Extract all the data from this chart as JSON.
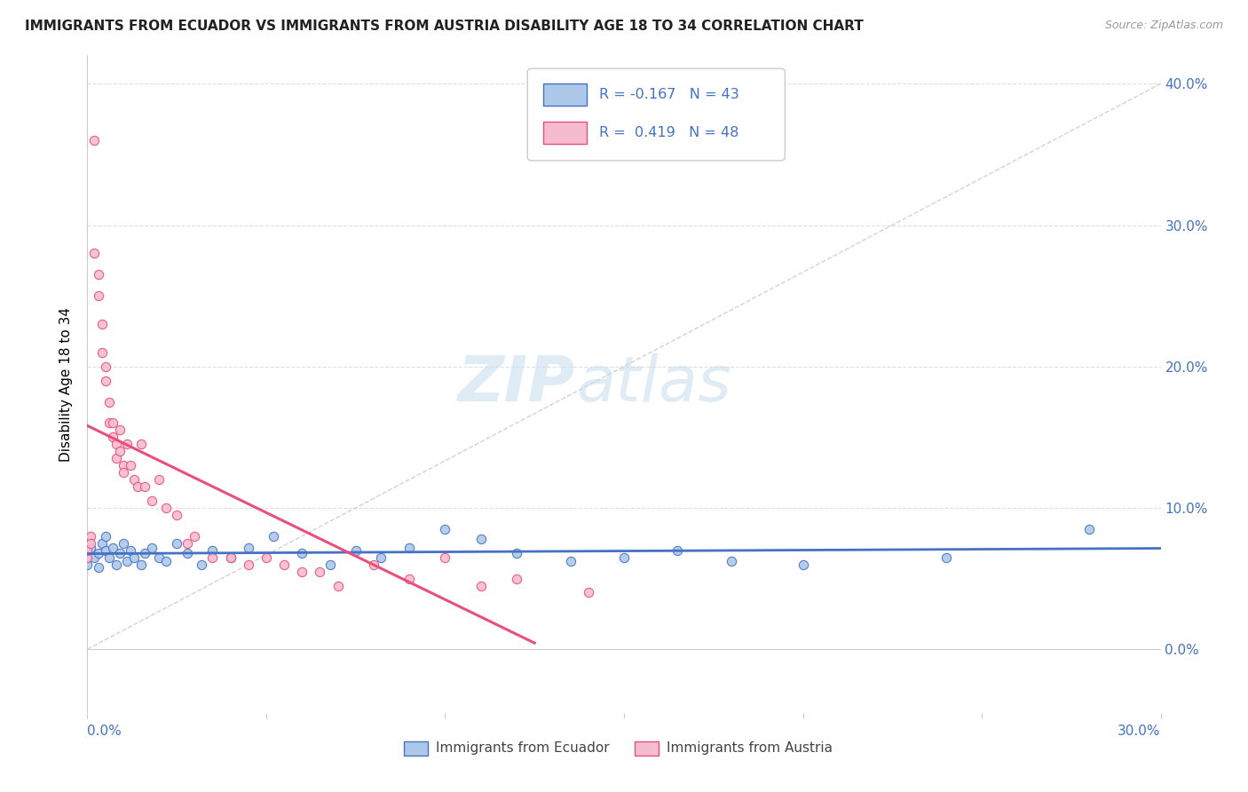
{
  "title": "IMMIGRANTS FROM ECUADOR VS IMMIGRANTS FROM AUSTRIA DISABILITY AGE 18 TO 34 CORRELATION CHART",
  "source": "Source: ZipAtlas.com",
  "ylabel": "Disability Age 18 to 34",
  "legend_ecuador": "Immigrants from Ecuador",
  "legend_austria": "Immigrants from Austria",
  "R_ecuador": -0.167,
  "N_ecuador": 43,
  "R_austria": 0.419,
  "N_austria": 48,
  "ecuador_color": "#adc8e8",
  "austria_color": "#f5bcd0",
  "ecuador_line_color": "#4472c4",
  "austria_line_color": "#e8507a",
  "xmin": 0.0,
  "xmax": 0.3,
  "ymin": -0.045,
  "ymax": 0.42,
  "yticks": [
    0.0,
    0.1,
    0.2,
    0.3,
    0.4
  ],
  "ecuador_x": [
    0.0,
    0.001,
    0.002,
    0.003,
    0.003,
    0.004,
    0.005,
    0.005,
    0.006,
    0.007,
    0.008,
    0.009,
    0.01,
    0.011,
    0.012,
    0.013,
    0.015,
    0.016,
    0.018,
    0.02,
    0.022,
    0.025,
    0.028,
    0.032,
    0.035,
    0.04,
    0.045,
    0.052,
    0.06,
    0.068,
    0.075,
    0.082,
    0.09,
    0.1,
    0.11,
    0.12,
    0.135,
    0.15,
    0.165,
    0.18,
    0.2,
    0.24,
    0.28
  ],
  "ecuador_y": [
    0.06,
    0.072,
    0.065,
    0.068,
    0.058,
    0.075,
    0.07,
    0.08,
    0.065,
    0.072,
    0.06,
    0.068,
    0.075,
    0.062,
    0.07,
    0.065,
    0.06,
    0.068,
    0.072,
    0.065,
    0.062,
    0.075,
    0.068,
    0.06,
    0.07,
    0.065,
    0.072,
    0.08,
    0.068,
    0.06,
    0.07,
    0.065,
    0.072,
    0.085,
    0.078,
    0.068,
    0.062,
    0.065,
    0.07,
    0.062,
    0.06,
    0.065,
    0.085
  ],
  "austria_x": [
    0.0,
    0.0,
    0.001,
    0.001,
    0.002,
    0.002,
    0.003,
    0.003,
    0.004,
    0.004,
    0.005,
    0.005,
    0.006,
    0.006,
    0.007,
    0.007,
    0.008,
    0.008,
    0.009,
    0.009,
    0.01,
    0.01,
    0.011,
    0.012,
    0.013,
    0.014,
    0.015,
    0.016,
    0.018,
    0.02,
    0.022,
    0.025,
    0.028,
    0.03,
    0.035,
    0.04,
    0.045,
    0.05,
    0.055,
    0.06,
    0.065,
    0.07,
    0.08,
    0.09,
    0.1,
    0.11,
    0.12,
    0.14
  ],
  "austria_y": [
    0.065,
    0.07,
    0.08,
    0.075,
    0.36,
    0.28,
    0.265,
    0.25,
    0.23,
    0.21,
    0.2,
    0.19,
    0.175,
    0.16,
    0.16,
    0.15,
    0.145,
    0.135,
    0.155,
    0.14,
    0.13,
    0.125,
    0.145,
    0.13,
    0.12,
    0.115,
    0.145,
    0.115,
    0.105,
    0.12,
    0.1,
    0.095,
    0.075,
    0.08,
    0.065,
    0.065,
    0.06,
    0.065,
    0.06,
    0.055,
    0.055,
    0.045,
    0.06,
    0.05,
    0.065,
    0.045,
    0.05,
    0.04
  ]
}
